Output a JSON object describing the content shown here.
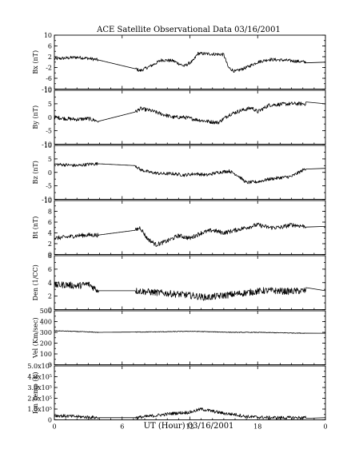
{
  "chart_data": {
    "type": "line",
    "title": "ACE Satellite Observational Data   03/16/2001",
    "xlabel": "UT (Hour)  03/16/2001",
    "x_ticks": [
      "0",
      "6",
      "12",
      "18",
      "0"
    ],
    "xlim": [
      0,
      24
    ],
    "data_gap_hours": [
      3.9,
      7.2
    ],
    "panels": [
      {
        "ylabel": "Bx (nT)",
        "ylim": [
          -10,
          10
        ],
        "yticks": [
          {
            "v": 10,
            "t": "10"
          },
          {
            "v": 6,
            "t": "6"
          },
          {
            "v": 2,
            "t": "2"
          },
          {
            "v": -2,
            "t": "-2"
          },
          {
            "v": -6,
            "t": "-6"
          },
          {
            "v": -10,
            "t": "-10"
          }
        ],
        "x": [
          0,
          1,
          2,
          3,
          3.9,
          7.2,
          7.6,
          8.5,
          9.5,
          10.5,
          11.5,
          12.3,
          12.7,
          14,
          15,
          15.4,
          16,
          17,
          18,
          19,
          20,
          21,
          22.3
        ],
        "y": [
          1.2,
          1.5,
          1.8,
          1.4,
          0.8,
          -2.5,
          -3.2,
          -1.5,
          0.8,
          0.5,
          -1.5,
          0.5,
          3.2,
          3,
          2.8,
          -2,
          -3.5,
          -2,
          0,
          1,
          0.8,
          0.5,
          0
        ],
        "noise": 0.6
      },
      {
        "ylabel": "By (nT)",
        "ylim": [
          -10,
          10
        ],
        "yticks": [
          {
            "v": 10,
            "t": "10"
          },
          {
            "v": 5,
            "t": "5"
          },
          {
            "v": 0,
            "t": "0"
          },
          {
            "v": -5,
            "t": "-5"
          },
          {
            "v": -10,
            "t": "-10"
          }
        ],
        "x": [
          0,
          1,
          2,
          3,
          3.9,
          7.2,
          7.6,
          8.5,
          9.5,
          10.5,
          11.5,
          12.5,
          13.5,
          14.5,
          15.5,
          16.5,
          17.5,
          18,
          19,
          20,
          21,
          22.3
        ],
        "y": [
          0,
          -0.5,
          -0.8,
          -0.5,
          -1.5,
          2,
          3.2,
          2.5,
          1.2,
          0,
          0,
          -0.8,
          -1.5,
          -2,
          1,
          2.5,
          3.5,
          2,
          4.5,
          4.8,
          5,
          5
        ],
        "noise": 0.7
      },
      {
        "ylabel": "Bz (nT)",
        "ylim": [
          -10,
          10
        ],
        "yticks": [
          {
            "v": 10,
            "t": "10"
          },
          {
            "v": 5,
            "t": "5"
          },
          {
            "v": 0,
            "t": "0"
          },
          {
            "v": -5,
            "t": "-5"
          },
          {
            "v": -10,
            "t": "-10"
          }
        ],
        "x": [
          0,
          1,
          2,
          3,
          3.9,
          7.2,
          7.6,
          8.5,
          9.5,
          10.5,
          11.5,
          12.5,
          13.5,
          14.5,
          15.5,
          16.2,
          17,
          18,
          19,
          20,
          21,
          22.3
        ],
        "y": [
          3,
          2.8,
          2.5,
          3,
          3.2,
          2.5,
          1,
          0,
          -0.5,
          -0.5,
          -1,
          -0.5,
          -1,
          0,
          0.5,
          -1,
          -3.8,
          -3.5,
          -2.5,
          -2,
          -1.5,
          1.5
        ],
        "noise": 0.6
      },
      {
        "ylabel": "Bt (nT)",
        "ylim": [
          0,
          10
        ],
        "yticks": [
          {
            "v": 10,
            "t": "10"
          },
          {
            "v": 8,
            "t": "8"
          },
          {
            "v": 6,
            "t": "6"
          },
          {
            "v": 4,
            "t": "4"
          },
          {
            "v": 2,
            "t": "2"
          },
          {
            "v": 0,
            "t": "0"
          }
        ],
        "x": [
          0,
          1,
          2,
          3,
          3.9,
          7.2,
          7.6,
          8.2,
          9,
          10,
          11,
          12,
          13,
          14,
          15,
          16,
          17,
          18,
          19,
          20,
          21,
          22.3
        ],
        "y": [
          3,
          3.2,
          3.5,
          3.6,
          3.6,
          4.5,
          5,
          3,
          1.8,
          2.5,
          3.5,
          3,
          4,
          4.5,
          4,
          4.5,
          5,
          5.5,
          5,
          5,
          5.5,
          5.2
        ],
        "noise": 0.4
      },
      {
        "ylabel": "Den (1/CC)",
        "ylim": [
          0,
          8
        ],
        "yticks": [
          {
            "v": 8,
            "t": "8"
          },
          {
            "v": 6,
            "t": "6"
          },
          {
            "v": 4,
            "t": "4"
          },
          {
            "v": 2,
            "t": "2"
          },
          {
            "v": 0,
            "t": "0"
          }
        ],
        "x": [
          0,
          1,
          2,
          3,
          3.9,
          7.2,
          8.5,
          10,
          11.5,
          12.5,
          13.5,
          14.5,
          15.5,
          16.5,
          17.5,
          18.5,
          19.5,
          20.5,
          22.3
        ],
        "y": [
          3.6,
          3.7,
          3.5,
          3.8,
          2.8,
          2.8,
          2.6,
          2.4,
          2.2,
          2.0,
          1.8,
          2.0,
          2.2,
          2.4,
          2.6,
          2.8,
          2.8,
          2.7,
          2.8
        ],
        "noise": 0.5
      },
      {
        "ylabel": "Vel (Km/sec)",
        "ylim": [
          0,
          500
        ],
        "yticks": [
          {
            "v": 500,
            "t": "500"
          },
          {
            "v": 400,
            "t": "400"
          },
          {
            "v": 300,
            "t": "300"
          },
          {
            "v": 200,
            "t": "200"
          },
          {
            "v": 100,
            "t": "100"
          },
          {
            "v": 0,
            "t": "0"
          }
        ],
        "x": [
          0,
          2,
          3.9,
          7.2,
          10,
          12,
          14,
          16,
          18,
          20,
          22.3
        ],
        "y": [
          315,
          308,
          300,
          303,
          306,
          310,
          305,
          300,
          300,
          296,
          292
        ],
        "noise": 3
      },
      {
        "ylabel": "Ion Temp (K)",
        "ylim": [
          0,
          500000
        ],
        "yticks": [
          {
            "v": 500000,
            "t": "5.0x10⁵"
          },
          {
            "v": 400000,
            "t": "4.0x10⁵"
          },
          {
            "v": 300000,
            "t": "3.0x10⁵"
          },
          {
            "v": 200000,
            "t": "2.0x10⁵"
          },
          {
            "v": 100000,
            "t": "1.0x10⁵"
          },
          {
            "v": 0,
            "t": "0"
          }
        ],
        "x": [
          0,
          2,
          3.9,
          7.2,
          9,
          10.5,
          12,
          13,
          14,
          15,
          16,
          17,
          18,
          19,
          20,
          22.3
        ],
        "y": [
          40000,
          30000,
          20000,
          20000,
          40000,
          60000,
          70000,
          100000,
          80000,
          60000,
          50000,
          30000,
          25000,
          20000,
          20000,
          20000
        ],
        "noise": 15000
      }
    ]
  }
}
